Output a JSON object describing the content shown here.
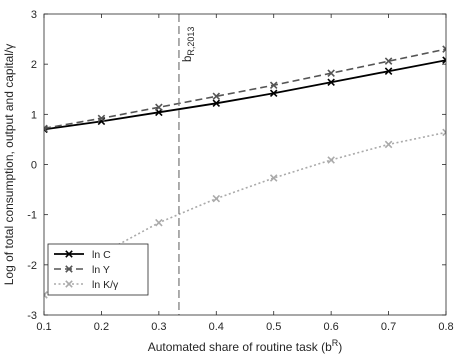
{
  "chart_data": {
    "type": "line",
    "xlabel": "Automated share of routine task (b",
    "xlabel_sup": "R",
    "xlabel_tail": ")",
    "ylabel": "Log of total consumption, output and capital/γ",
    "xlim": [
      0.1,
      0.8
    ],
    "ylim": [
      -3,
      3
    ],
    "x_ticks": [
      0.1,
      0.2,
      0.3,
      0.4,
      0.5,
      0.6,
      0.7,
      0.8
    ],
    "y_ticks": [
      -3,
      -2,
      -1,
      0,
      1,
      2,
      3
    ],
    "grid": false,
    "legend_position": "bottom-left",
    "series": [
      {
        "name": "ln C",
        "color": "#000000",
        "style": "solid",
        "marker": "x",
        "x": [
          0.1,
          0.2,
          0.3,
          0.4,
          0.5,
          0.6,
          0.7,
          0.8
        ],
        "y": [
          0.7,
          0.86,
          1.04,
          1.22,
          1.42,
          1.64,
          1.86,
          2.08
        ]
      },
      {
        "name": "ln Y",
        "color": "#555555",
        "style": "dashed",
        "marker": "x",
        "x": [
          0.1,
          0.2,
          0.3,
          0.4,
          0.5,
          0.6,
          0.7,
          0.8
        ],
        "y": [
          0.72,
          0.92,
          1.14,
          1.36,
          1.58,
          1.82,
          2.06,
          2.3
        ]
      },
      {
        "name": "ln K/γ",
        "color": "#aaaaaa",
        "style": "dotted",
        "marker": "x",
        "x": [
          0.1,
          0.2,
          0.3,
          0.4,
          0.5,
          0.6,
          0.7,
          0.8
        ],
        "y": [
          -2.6,
          -1.78,
          -1.16,
          -0.68,
          -0.27,
          0.09,
          0.4,
          0.64
        ]
      }
    ],
    "vline": {
      "x": 0.335,
      "label": "b",
      "label_sub": "R,2013"
    }
  }
}
